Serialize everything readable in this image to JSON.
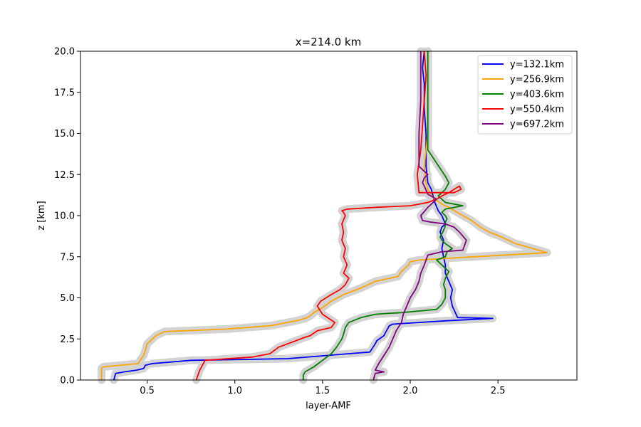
{
  "chart_data": {
    "type": "line",
    "title": "x=214.0 km",
    "xlabel": "layer-AMF",
    "ylabel": "z [km]",
    "xlim": [
      0.12,
      2.95
    ],
    "ylim": [
      0,
      20
    ],
    "xticks": [
      0.5,
      1.0,
      1.5,
      2.0,
      2.5
    ],
    "xtick_labels": [
      "0.5",
      "1.0",
      "1.5",
      "2.0",
      "2.5"
    ],
    "yticks": [
      0,
      2.5,
      5,
      7.5,
      10,
      12.5,
      15,
      17.5,
      20
    ],
    "ytick_labels": [
      "0.0",
      "2.5",
      "5.0",
      "7.5",
      "10.0",
      "12.5",
      "15.0",
      "17.5",
      "20.0"
    ],
    "grid": false,
    "legend_position": "top-right",
    "shading_color": "#d3d3d3",
    "series": [
      {
        "name": "y=132.1km",
        "color": "#0000ff",
        "x": [
          0.31,
          0.32,
          0.37,
          0.44,
          0.48,
          0.49,
          0.53,
          0.75,
          1.3,
          1.65,
          1.77,
          1.8,
          1.81,
          1.85,
          1.86,
          1.88,
          1.9,
          2.05,
          2.2,
          2.47,
          2.27,
          2.24,
          2.23,
          2.24,
          2.22,
          2.2,
          2.2,
          2.19,
          2.18,
          2.19,
          2.17,
          2.18,
          2.2,
          2.18,
          2.16,
          2.14,
          2.13,
          2.12,
          2.1,
          2.09,
          2.09,
          2.08,
          2.08,
          2.07,
          2.08
        ],
        "y": [
          0,
          0.4,
          0.5,
          0.6,
          0.7,
          0.9,
          1.0,
          1.2,
          1.3,
          1.6,
          1.7,
          2.2,
          2.4,
          2.7,
          2.9,
          3.3,
          3.4,
          3.5,
          3.6,
          3.75,
          3.8,
          4.5,
          5.0,
          5.5,
          6.0,
          6.5,
          7.0,
          7.5,
          8.0,
          8.5,
          9.0,
          9.3,
          9.5,
          10.0,
          10.3,
          10.8,
          11.2,
          11.6,
          12.0,
          13.0,
          15.0,
          16.5,
          18.0,
          19.0,
          20.0
        ]
      },
      {
        "name": "y=256.9km",
        "color": "#ffa500",
        "x": [
          0.24,
          0.24,
          0.25,
          0.45,
          0.46,
          0.48,
          0.49,
          0.5,
          0.53,
          0.55,
          0.6,
          0.95,
          1.2,
          1.35,
          1.4,
          1.43,
          1.45,
          1.5,
          1.55,
          1.62,
          1.72,
          1.8,
          1.93,
          1.95,
          1.97,
          1.99,
          2.0,
          2.05,
          2.2,
          2.78,
          2.7,
          2.6,
          2.52,
          2.45,
          2.4,
          2.35,
          2.3,
          2.22,
          2.18,
          2.13,
          2.1,
          2.09,
          2.08,
          2.1,
          2.1,
          2.1
        ],
        "y": [
          0,
          0.7,
          0.8,
          1.0,
          1.2,
          1.5,
          1.8,
          2.2,
          2.5,
          2.7,
          2.95,
          3.1,
          3.3,
          3.6,
          3.75,
          3.9,
          4.1,
          4.4,
          4.8,
          5.2,
          5.6,
          6.0,
          6.3,
          6.6,
          6.8,
          7.0,
          7.2,
          7.3,
          7.4,
          7.75,
          8.0,
          8.3,
          8.7,
          9.0,
          9.3,
          9.7,
          10.0,
          10.5,
          10.7,
          11.1,
          11.6,
          12.0,
          13.0,
          15.0,
          17.5,
          20.0
        ]
      },
      {
        "name": "y=403.6km",
        "color": "#008000",
        "x": [
          1.39,
          1.39,
          1.4,
          1.45,
          1.5,
          1.55,
          1.58,
          1.61,
          1.62,
          1.63,
          1.65,
          1.72,
          1.8,
          1.87,
          1.95,
          2.05,
          2.15,
          2.18,
          2.2,
          2.2,
          2.19,
          2.2,
          2.22,
          2.18,
          2.15,
          2.2,
          2.21,
          2.24,
          2.2,
          2.18,
          2.17,
          2.18,
          2.19,
          2.2,
          2.2,
          2.21,
          2.2,
          2.18,
          2.2,
          2.3,
          2.2,
          2.16,
          2.2,
          2.22,
          2.2,
          2.1,
          2.1,
          2.1
        ],
        "y": [
          0,
          0.3,
          0.5,
          0.8,
          1.2,
          1.6,
          2.0,
          2.5,
          2.8,
          3.2,
          3.5,
          3.8,
          4.0,
          4.05,
          4.1,
          4.2,
          4.3,
          4.6,
          5.0,
          5.5,
          5.8,
          6.2,
          6.6,
          7.0,
          7.3,
          7.5,
          7.8,
          8.0,
          8.3,
          8.5,
          8.7,
          8.9,
          9.1,
          9.4,
          9.6,
          9.8,
          10.0,
          10.2,
          10.4,
          10.6,
          10.8,
          11.2,
          11.6,
          12.0,
          12.4,
          14.0,
          16.0,
          20.0
        ]
      },
      {
        "name": "y=550.4km",
        "color": "#ff0000",
        "x": [
          0.78,
          0.79,
          0.8,
          0.83,
          1.1,
          1.2,
          1.25,
          1.35,
          1.4,
          1.43,
          1.47,
          1.55,
          1.57,
          1.5,
          1.47,
          1.49,
          1.55,
          1.6,
          1.63,
          1.65,
          1.62,
          1.64,
          1.62,
          1.63,
          1.61,
          1.62,
          1.61,
          1.63,
          1.62,
          1.61,
          1.64,
          1.8,
          2.0,
          2.1,
          2.15,
          2.18,
          2.22,
          2.25,
          2.28,
          2.29,
          2.25,
          2.05,
          2.04,
          2.06,
          2.07,
          2.08,
          2.09,
          2.08
        ],
        "y": [
          0,
          0.3,
          0.6,
          1.2,
          1.4,
          1.6,
          2.0,
          2.4,
          2.6,
          2.7,
          3.0,
          3.2,
          3.5,
          4.0,
          4.5,
          4.8,
          5.2,
          5.5,
          5.8,
          6.2,
          6.5,
          7.0,
          7.5,
          8.0,
          8.5,
          9.0,
          9.5,
          10.0,
          10.2,
          10.3,
          10.4,
          10.5,
          10.6,
          10.8,
          11.0,
          11.2,
          11.4,
          11.6,
          11.8,
          11.6,
          11.4,
          11.4,
          12.5,
          14.0,
          15.5,
          17.0,
          18.5,
          20.0
        ]
      },
      {
        "name": "y=697.2km",
        "color": "#800080",
        "x": [
          1.79,
          1.8,
          1.85,
          1.8,
          1.82,
          1.85,
          1.88,
          1.9,
          1.92,
          1.95,
          1.96,
          1.98,
          2.0,
          2.03,
          2.05,
          2.06,
          2.08,
          2.1,
          2.18,
          2.3,
          2.32,
          2.28,
          2.25,
          2.2,
          2.12,
          2.07,
          2.06,
          2.1,
          2.15,
          2.1,
          2.08,
          2.07,
          2.08,
          2.1,
          2.05,
          2.05,
          2.06,
          2.06,
          2.06
        ],
        "y": [
          0,
          0.4,
          0.5,
          0.6,
          1.0,
          1.5,
          2.0,
          2.5,
          3.0,
          3.5,
          4.0,
          4.5,
          5.0,
          5.5,
          6.0,
          6.5,
          7.0,
          7.6,
          7.8,
          7.9,
          8.5,
          9.0,
          9.3,
          9.5,
          9.6,
          9.7,
          10.0,
          10.5,
          11.0,
          11.3,
          11.8,
          12.0,
          12.3,
          12.5,
          13.0,
          15.0,
          17.0,
          18.5,
          20.0
        ]
      }
    ]
  }
}
